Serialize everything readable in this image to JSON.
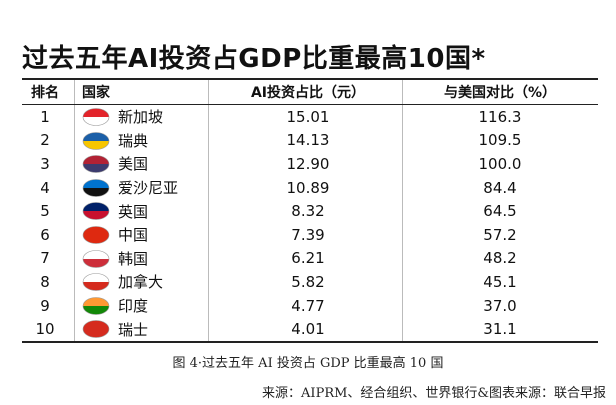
{
  "title": "过去五年AI投资占GDP比重最高10国*",
  "table": {
    "header": [
      "排名",
      "国家",
      "AI投资占比（元）",
      "与美国对比（%）"
    ],
    "rows": [
      [
        "1",
        "新加坡",
        "15.01",
        "116.3"
      ],
      [
        "2",
        "瑞典",
        "14.13",
        "109.5"
      ],
      [
        "3",
        "美国",
        "12.90",
        "100.0"
      ],
      [
        "4",
        "爱沙尼亚",
        "10.89",
        "84.4"
      ],
      [
        "5",
        "英国",
        "8.32",
        "64.5"
      ],
      [
        "6",
        "中国",
        "7.39",
        "57.2"
      ],
      [
        "7",
        "韩国",
        "6.21",
        "48.2"
      ],
      [
        "8",
        "加拿大",
        "5.82",
        "45.1"
      ],
      [
        "9",
        "印度",
        "4.77",
        "37.0"
      ],
      [
        "10",
        "瑞士",
        "4.01",
        "31.1"
      ]
    ]
  },
  "caption": "图 4·过去五年 AI 投资占 GDP 比重最高 10 国",
  "source": "来源：AIPRM、经合组织、世界银行&图表来源：联合早报"
}
